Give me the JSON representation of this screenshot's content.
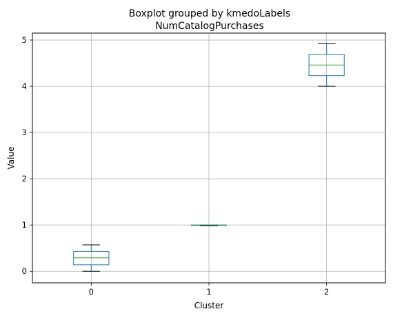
{
  "chart_data": {
    "type": "boxplot",
    "title": "Boxplot grouped by kmedoLabels",
    "subtitle": "NumCatalogPurchases",
    "xlabel": "Cluster",
    "ylabel": "Value",
    "categories": [
      "0",
      "1",
      "2"
    ],
    "boxes": [
      {
        "category": "0",
        "whisker_low": 0.0,
        "q1": 0.14,
        "median": 0.29,
        "q3": 0.43,
        "whisker_high": 0.57
      },
      {
        "category": "1",
        "whisker_low": 0.98,
        "q1": 0.99,
        "median": 1.0,
        "q3": 1.0,
        "whisker_high": 1.0
      },
      {
        "category": "2",
        "whisker_low": 4.0,
        "q1": 4.23,
        "median": 4.46,
        "q3": 4.69,
        "whisker_high": 4.92
      }
    ],
    "ylim": [
      -0.25,
      5.15
    ],
    "yticks": [
      0,
      1,
      2,
      3,
      4,
      5
    ],
    "grid": true,
    "colors": {
      "box": "#1f77b4",
      "median": "#2ca02c",
      "whisker": "#000000",
      "grid": "#b0b0b0"
    }
  }
}
